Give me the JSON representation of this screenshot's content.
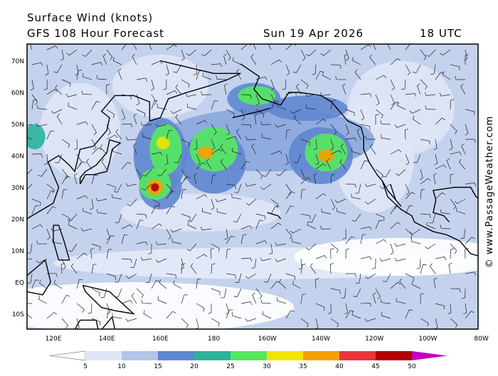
{
  "header": {
    "title": "Surface Wind (knots)",
    "subtitle": "GFS 108 Hour Forecast",
    "date": "Sun 19 Apr 2026",
    "time": "18 UTC"
  },
  "map": {
    "lat_labels": [
      "70N",
      "60N",
      "50N",
      "40N",
      "30N",
      "20N",
      "10N",
      "EQ",
      "10S"
    ],
    "lon_labels": [
      "120E",
      "140E",
      "160E",
      "180",
      "160W",
      "140W",
      "120W",
      "100W",
      "80W"
    ]
  },
  "colorbar": {
    "ticks": [
      5,
      10,
      15,
      20,
      25,
      30,
      35,
      40,
      45,
      50
    ],
    "colors": [
      "#ffffff",
      "#dfe6f6",
      "#b2c4e8",
      "#5f86cf",
      "#2bb39b",
      "#55e85f",
      "#f0e400",
      "#f5a000",
      "#e8363a",
      "#b30000",
      "#c000c0"
    ]
  },
  "credit": "© www.PassageWeather.com"
}
